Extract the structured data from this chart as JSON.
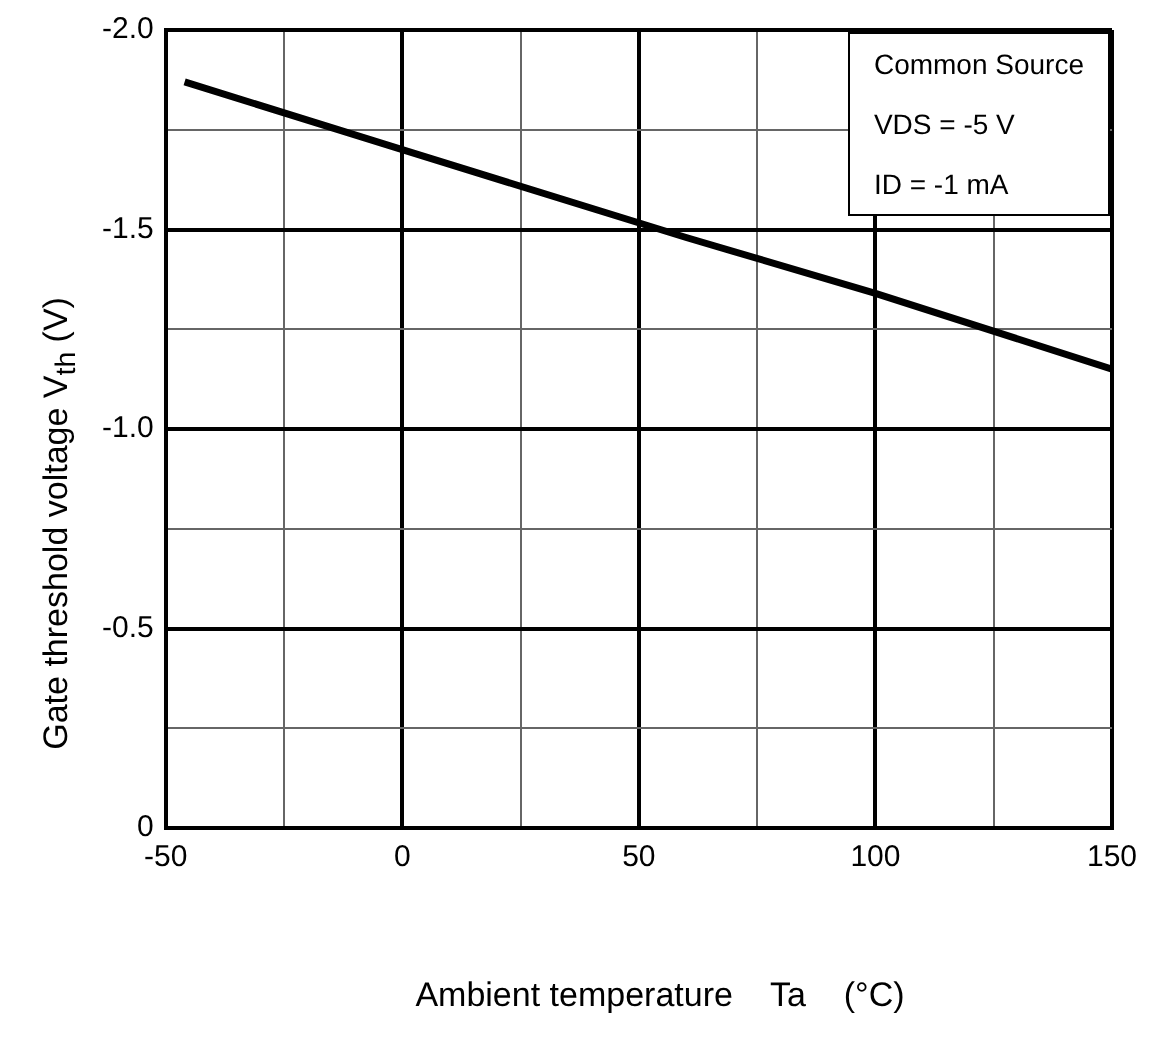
{
  "chart_data": {
    "type": "line",
    "xlabel": "Ambient temperature    Ta    (°C)",
    "ylabel": "Gate threshold voltage    V$_{th}$    (V)",
    "x": [
      -46,
      0,
      60,
      100,
      150
    ],
    "series": [
      {
        "color": "#000000",
        "values": [
          -1.87,
          -1.7,
          -1.48,
          -1.34,
          -1.15
        ]
      }
    ],
    "xlim": [
      -50,
      150
    ],
    "xticks": [
      -50,
      {
        "value": -25,
        "label": null
      },
      0,
      {
        "value": 25,
        "label": null
      },
      50,
      {
        "value": 75,
        "label": null
      },
      100,
      {
        "value": 125,
        "label": null
      },
      150
    ],
    "ylim": [
      0,
      -2.0
    ],
    "yticks": [
      0,
      {
        "value": -0.25,
        "label": null
      },
      -0.5,
      {
        "value": -0.75,
        "label": null
      },
      {
        "value": -1.0,
        "label": "-1.0"
      },
      {
        "value": -1.25,
        "label": null
      },
      -1.5,
      {
        "value": -1.75,
        "label": null
      },
      {
        "value": -2.0,
        "label": "-2.0"
      }
    ],
    "grid": true,
    "legend": false,
    "marker": "none",
    "line_style": "solid",
    "annotations": [
      "Common Source",
      "VDS = -5 V",
      "ID = -1 mA"
    ]
  }
}
